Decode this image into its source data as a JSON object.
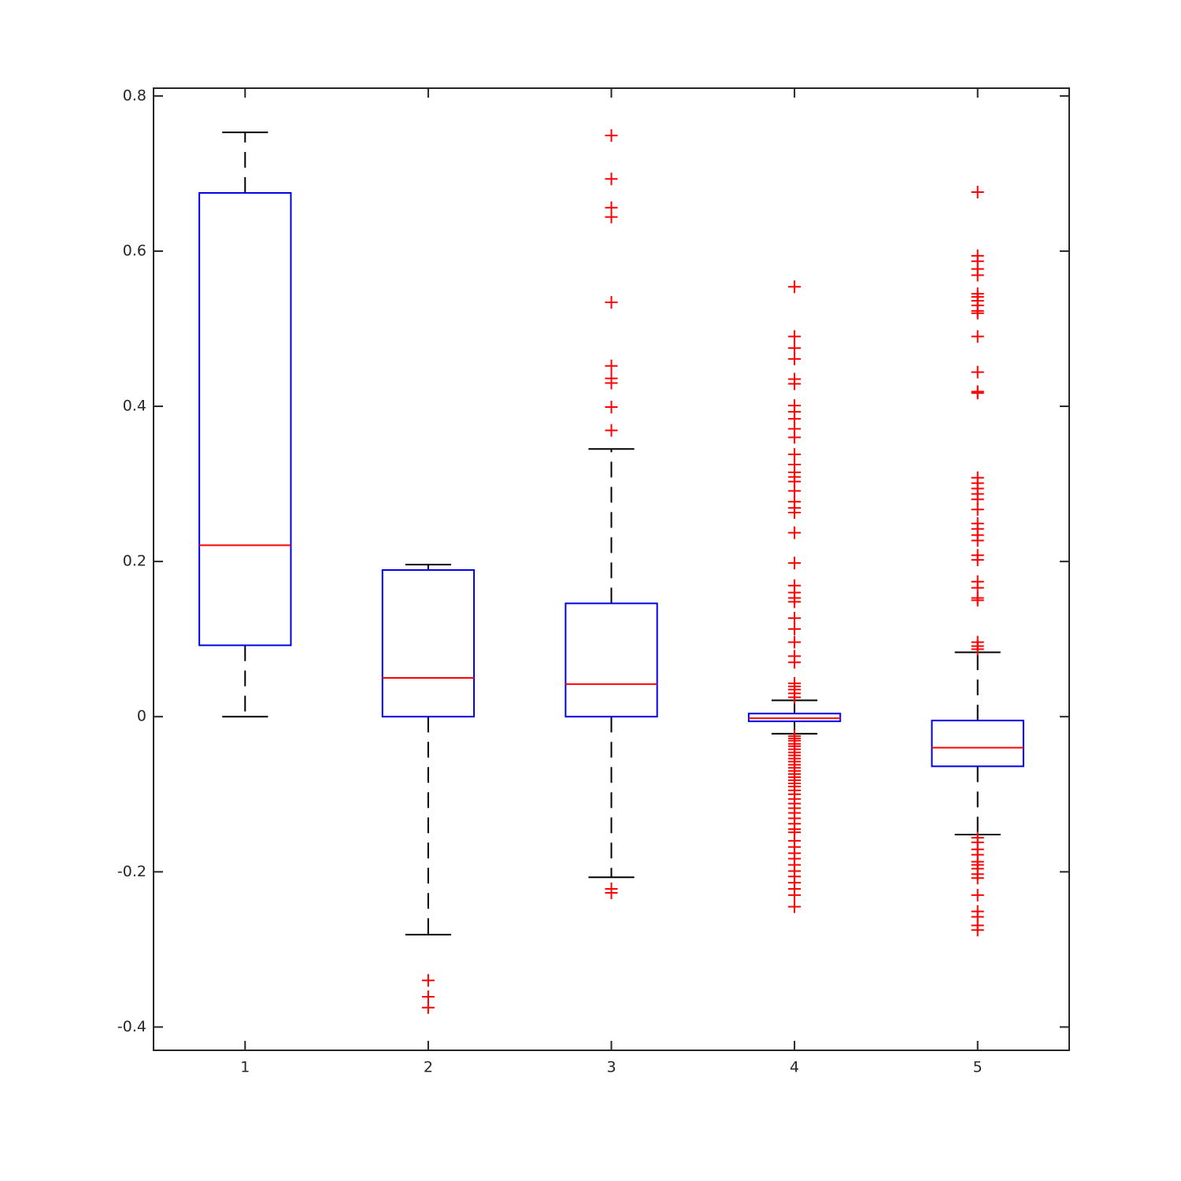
{
  "chart_data": {
    "type": "box",
    "categories": [
      "1",
      "2",
      "3",
      "4",
      "5"
    ],
    "xlim": [
      0.5,
      5.5
    ],
    "ylim": [
      -0.43,
      0.81
    ],
    "yticks": [
      -0.4,
      -0.2,
      0,
      0.2,
      0.4,
      0.6,
      0.8
    ],
    "box_color": "#0000e6",
    "median_color": "#ff0000",
    "whisker_color": "#000000",
    "outlier_color": "#ff0000",
    "boxes": [
      {
        "whisker_low": 0,
        "q1": 0.092,
        "median": 0.221,
        "q3": 0.675,
        "whisker_high": 0.753,
        "outliers": []
      },
      {
        "whisker_low": -0.281,
        "q1": 0,
        "median": 0.05,
        "q3": 0.189,
        "whisker_high": 0.196,
        "outliers": [
          -0.34,
          -0.361,
          -0.375
        ]
      },
      {
        "whisker_low": -0.207,
        "q1": 0,
        "median": 0.042,
        "q3": 0.146,
        "whisker_high": 0.345,
        "outliers": [
          0.749,
          0.693,
          0.656,
          0.644,
          0.534,
          0.452,
          0.436,
          0.43,
          0.399,
          0.369,
          -0.222,
          -0.227
        ]
      },
      {
        "whisker_low": -0.022,
        "q1": -0.006,
        "median": -0.002,
        "q3": 0.004,
        "whisker_high": 0.021,
        "outliers": [
          0.554,
          0.49,
          0.475,
          0.461,
          0.435,
          0.429,
          0.401,
          0.393,
          0.384,
          0.371,
          0.36,
          0.338,
          0.325,
          0.315,
          0.309,
          0.303,
          0.291,
          0.277,
          0.269,
          0.263,
          0.237,
          0.198,
          0.169,
          0.16,
          0.153,
          0.148,
          0.127,
          0.113,
          0.096,
          0.078,
          0.07,
          0.043,
          0.039,
          0.035,
          0.03,
          0.025,
          -0.025,
          -0.028,
          -0.031,
          -0.035,
          -0.038,
          -0.042,
          -0.046,
          -0.05,
          -0.054,
          -0.058,
          -0.062,
          -0.066,
          -0.07,
          -0.074,
          -0.078,
          -0.082,
          -0.086,
          -0.09,
          -0.095,
          -0.1,
          -0.106,
          -0.112,
          -0.118,
          -0.124,
          -0.131,
          -0.138,
          -0.145,
          -0.149,
          -0.16,
          -0.168,
          -0.176,
          -0.183,
          -0.191,
          -0.199,
          -0.206,
          -0.214,
          -0.222,
          -0.23,
          -0.245
        ]
      },
      {
        "whisker_low": -0.152,
        "q1": -0.064,
        "median": -0.04,
        "q3": -0.005,
        "whisker_high": 0.083,
        "outliers": [
          0.676,
          0.594,
          0.587,
          0.577,
          0.569,
          0.545,
          0.541,
          0.536,
          0.53,
          0.523,
          0.52,
          0.49,
          0.444,
          0.419,
          0.417,
          0.308,
          0.301,
          0.294,
          0.287,
          0.28,
          0.267,
          0.249,
          0.242,
          0.234,
          0.227,
          0.208,
          0.202,
          0.174,
          0.166,
          0.153,
          0.15,
          0.096,
          0.091,
          0.087,
          -0.156,
          -0.162,
          -0.171,
          -0.178,
          -0.187,
          -0.191,
          -0.196,
          -0.203,
          -0.208,
          -0.23,
          -0.251,
          -0.258,
          -0.269,
          -0.275
        ]
      }
    ]
  }
}
